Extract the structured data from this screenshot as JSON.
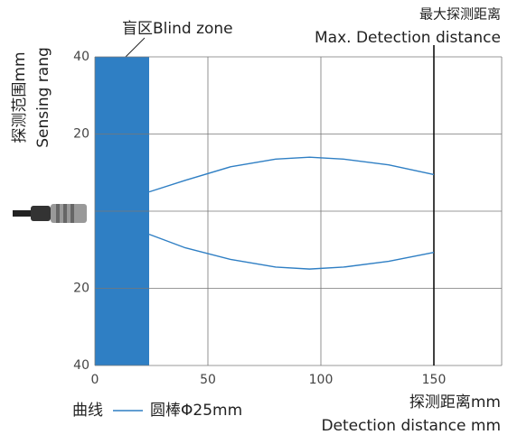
{
  "chart_data": {
    "type": "sensing-range",
    "annotation": "盲区Blind zone",
    "max_label_zh": "最大探测距离",
    "max_label_en": "Max. Detection distance",
    "ylabel_zh": "探测范围mm",
    "ylabel_en": "Sensing rang",
    "xlabel_zh": "探测距离mm",
    "xlabel_en": "Detection distance mm",
    "legend_title": "曲线",
    "xlim": [
      0,
      180
    ],
    "xticks": [
      0,
      50,
      100,
      150
    ],
    "ylim": [
      -40,
      40
    ],
    "yticks": [
      {
        "value": 40,
        "label": "40"
      },
      {
        "value": 20,
        "label": "20"
      },
      {
        "value": 0,
        "label": null
      },
      {
        "value": -20,
        "label": "20"
      },
      {
        "value": -40,
        "label": "40"
      }
    ],
    "blind_zone": 24,
    "blind_color": "#2f7fc4",
    "max_distance": 150,
    "grid": true,
    "series": [
      {
        "name": "圆棒Φ25mm",
        "color": "#2f7fc4",
        "x": [
          24,
          40,
          60,
          80,
          95,
          110,
          130,
          150
        ],
        "upper": [
          5,
          8,
          11.5,
          13.5,
          14,
          13.5,
          12,
          9.5
        ],
        "lower": [
          -6,
          -9.5,
          -12.5,
          -14.5,
          -15,
          -14.5,
          -13,
          -10.7
        ]
      }
    ]
  }
}
